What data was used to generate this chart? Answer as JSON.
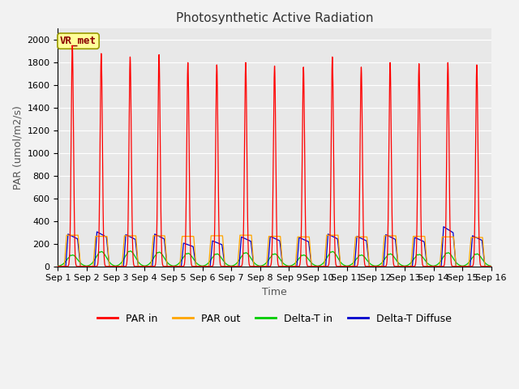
{
  "title": "Photosynthetic Active Radiation",
  "xlabel": "Time",
  "ylabel": "PAR (umol/m2/s)",
  "ylim": [
    0,
    2100
  ],
  "yticks": [
    0,
    200,
    400,
    600,
    800,
    1000,
    1200,
    1400,
    1600,
    1800,
    2000
  ],
  "xtick_labels": [
    "Sep 1",
    "Sep 2",
    "Sep 3",
    "Sep 4",
    "Sep 5",
    "Sep 6",
    "Sep 7",
    "Sep 8",
    "Sep 9",
    "Sep 10",
    "Sep 11",
    "Sep 12",
    "Sep 13",
    "Sep 14",
    "Sep 15",
    "Sep 16"
  ],
  "annotation_text": "VR_met",
  "annotation_color": "#8B0000",
  "annotation_bg": "#FFFF99",
  "plot_bg_color": "#E8E8E8",
  "fig_bg_color": "#F2F2F2",
  "colors": {
    "par_in": "#FF0000",
    "par_out": "#FFA500",
    "delta_t_in": "#00CC00",
    "delta_t_diffuse": "#0000CC"
  },
  "legend_labels": [
    "PAR in",
    "PAR out",
    "Delta-T in",
    "Delta-T Diffuse"
  ],
  "par_in_peaks": [
    1950,
    1880,
    1850,
    1870,
    1800,
    1780,
    1800,
    1770,
    1760,
    1850,
    1760,
    1800,
    1790,
    1800,
    1780
  ],
  "par_out_peaks": [
    275,
    265,
    270,
    270,
    265,
    270,
    275,
    265,
    260,
    275,
    260,
    270,
    265,
    260,
    255
  ],
  "delta_t_in_peaks": [
    100,
    130,
    135,
    125,
    115,
    110,
    120,
    110,
    100,
    130,
    100,
    110,
    105,
    120,
    110
  ],
  "delta_t_diff_peaks": [
    285,
    305,
    280,
    285,
    205,
    225,
    260,
    265,
    255,
    285,
    265,
    280,
    255,
    350,
    270
  ],
  "title_fontsize": 11,
  "label_fontsize": 9,
  "tick_fontsize": 8,
  "legend_fontsize": 9
}
